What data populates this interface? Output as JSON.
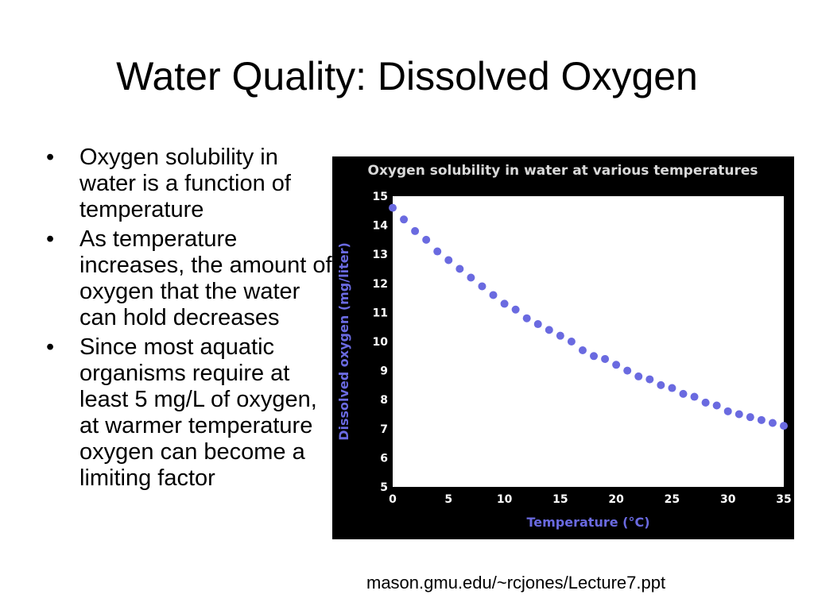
{
  "slide": {
    "title": "Water Quality: Dissolved Oxygen",
    "bullets": [
      "Oxygen solubility in water is a function of temperature",
      "As temperature increases, the amount of oxygen that the water can hold decreases",
      "Since most aquatic organisms require at least 5 mg/L of oxygen, at warmer temperature oxygen can become a limiting factor"
    ],
    "bullet_symbol": "•",
    "source": "mason.gmu.edu/~rcjones/Lecture7.ppt"
  },
  "colors": {
    "panel_bg": "#000000",
    "plot_bg": "#ffffff",
    "title_text": "#d9d9d9",
    "tick_text": "#ffffff",
    "axis_label": "#6a6ae0",
    "points": "#6a6ae0"
  },
  "chart_data": {
    "type": "scatter",
    "title": "Oxygen solubility in water at various temperatures",
    "xlabel": "Temperature (°C)",
    "ylabel": "Dissolved oxygen (mg/liter)",
    "xlim": [
      0,
      35
    ],
    "ylim": [
      5,
      15
    ],
    "x_ticks": [
      0,
      5,
      10,
      15,
      20,
      25,
      30,
      35
    ],
    "y_ticks": [
      5,
      6,
      7,
      8,
      9,
      10,
      11,
      12,
      13,
      14,
      15
    ],
    "grid": false,
    "series": [
      {
        "x": [
          0,
          1,
          2,
          3,
          4,
          5,
          6,
          7,
          8,
          9,
          10,
          11,
          12,
          13,
          14,
          15,
          16,
          17,
          18,
          19,
          20,
          21,
          22,
          23,
          24,
          25,
          26,
          27,
          28,
          29,
          30,
          31,
          32,
          33,
          34,
          35
        ],
        "y": [
          14.6,
          14.2,
          13.8,
          13.5,
          13.1,
          12.8,
          12.5,
          12.2,
          11.9,
          11.6,
          11.3,
          11.1,
          10.8,
          10.6,
          10.4,
          10.2,
          10.0,
          9.7,
          9.5,
          9.4,
          9.2,
          9.0,
          8.8,
          8.7,
          8.5,
          8.4,
          8.2,
          8.1,
          7.9,
          7.8,
          7.6,
          7.5,
          7.4,
          7.3,
          7.2,
          7.1
        ]
      }
    ]
  }
}
